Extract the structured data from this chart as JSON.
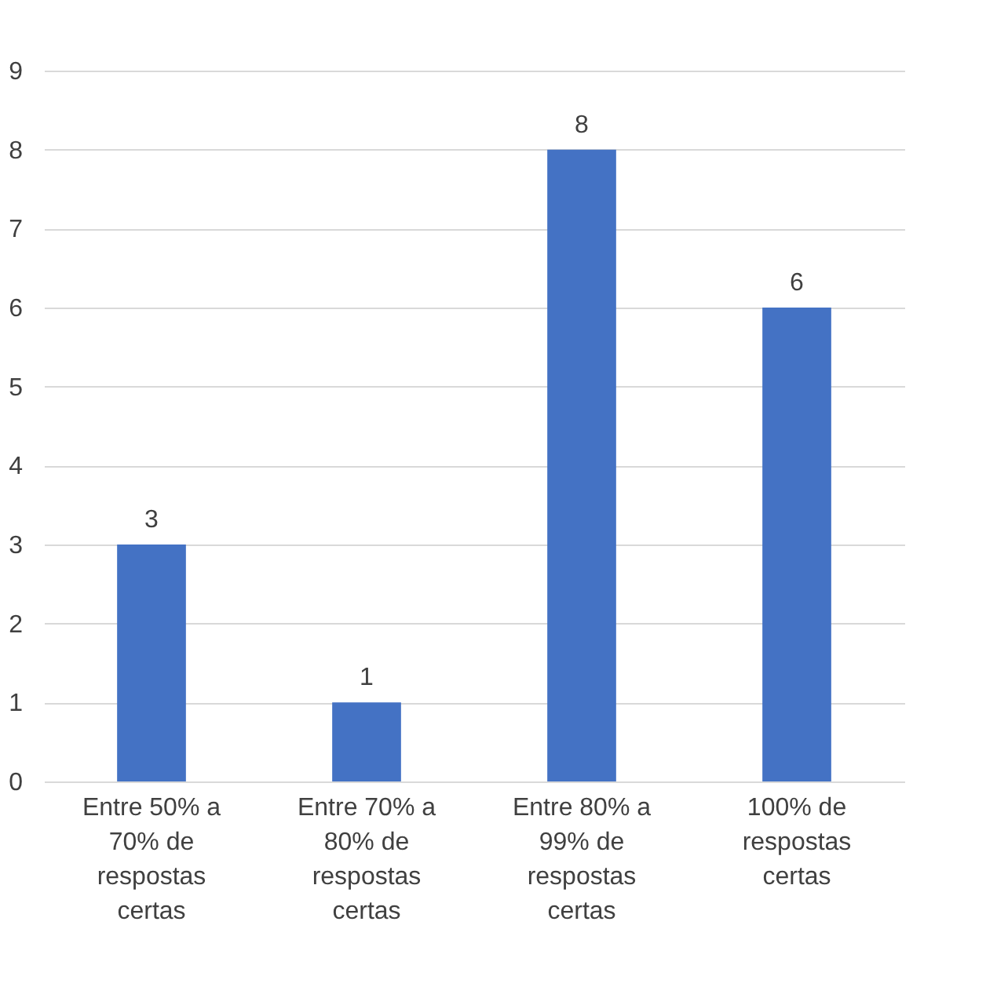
{
  "chart_data": {
    "type": "bar",
    "categories": [
      "Entre 50% a 70% de respostas certas",
      "Entre 70% a 80% de respostas certas",
      "Entre 80% a 99% de respostas certas",
      "100% de respostas certas"
    ],
    "values": [
      3,
      1,
      8,
      6
    ],
    "color": "#4472c4",
    "ylim": [
      0,
      9
    ],
    "yticks": [
      0,
      1,
      2,
      3,
      4,
      5,
      6,
      7,
      8,
      9
    ],
    "grid": "y",
    "data_labels": true
  }
}
